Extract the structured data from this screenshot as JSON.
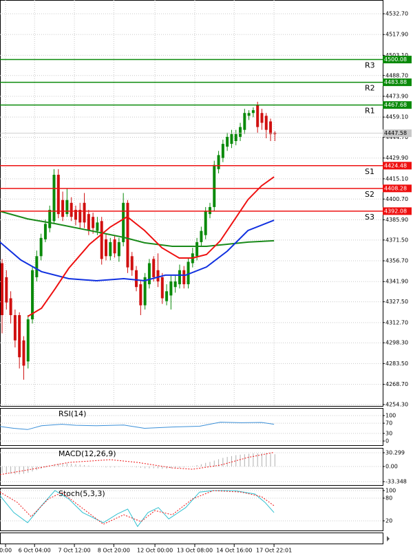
{
  "chart_data": [
    {
      "type": "candlestick",
      "open": [
        4355,
        4345,
        4330,
        4318,
        4318,
        4300,
        4285,
        4315,
        4345,
        4360,
        4372,
        4380,
        4385,
        4418,
        4400,
        4390,
        4398,
        4393,
        4393,
        4398,
        4390,
        4388,
        4378,
        4385,
        4372,
        4360,
        4372,
        4360,
        4370,
        4398,
        4360,
        4350,
        4340,
        4325,
        4340,
        4358,
        4350,
        4345,
        4328,
        4332,
        4338,
        4340,
        4350,
        4340,
        4355,
        4360,
        4370,
        4375,
        4390,
        4395,
        4422,
        4430,
        4438,
        4440,
        4442,
        4445,
        4450,
        4460,
        4462,
        4468,
        4462,
        4460,
        4456,
        4448
      ],
      "high": [
        4358,
        4350,
        4335,
        4322,
        4320,
        4303,
        4318,
        4353,
        4364,
        4376,
        4386,
        4396,
        4422,
        4422,
        4406,
        4408,
        4402,
        4396,
        4398,
        4405,
        4393,
        4391,
        4388,
        4388,
        4376,
        4373,
        4375,
        4373,
        4405,
        4400,
        4363,
        4353,
        4343,
        4348,
        4358,
        4360,
        4362,
        4348,
        4340,
        4346,
        4346,
        4354,
        4353,
        4359,
        4366,
        4373,
        4381,
        4395,
        4398,
        4428,
        4435,
        4443,
        4448,
        4450,
        4450,
        4455,
        4465,
        4464,
        4466,
        4470,
        4465,
        4462,
        4458,
        4449
      ],
      "low": [
        4305,
        4322,
        4312,
        4295,
        4280,
        4272,
        4280,
        4312,
        4342,
        4357,
        4370,
        4377,
        4383,
        4387,
        4385,
        4388,
        4385,
        4382,
        4380,
        4380,
        4375,
        4376,
        4375,
        4354,
        4357,
        4357,
        4359,
        4356,
        4367,
        4348,
        4346,
        4335,
        4318,
        4322,
        4337,
        4342,
        4338,
        4326,
        4325,
        4322,
        4334,
        4337,
        4337,
        4337,
        4352,
        4357,
        4367,
        4372,
        4387,
        4392,
        4419,
        4427,
        4435,
        4437,
        4439,
        4442,
        4447,
        4457,
        4459,
        4448,
        4450,
        4444,
        4442,
        4442
      ],
      "close": [
        4318,
        4327,
        4318,
        4300,
        4288,
        4282,
        4315,
        4350,
        4360,
        4373,
        4383,
        4393,
        4418,
        4390,
        4388,
        4400,
        4388,
        4386,
        4384,
        4384,
        4378,
        4380,
        4384,
        4358,
        4360,
        4370,
        4362,
        4370,
        4398,
        4352,
        4350,
        4338,
        4325,
        4345,
        4355,
        4345,
        4342,
        4330,
        4335,
        4342,
        4342,
        4350,
        4340,
        4356,
        4362,
        4370,
        4378,
        4392,
        4395,
        4425,
        4432,
        4440,
        4445,
        4447,
        4447,
        4452,
        4462,
        4462,
        4464,
        4452,
        4455,
        4450,
        4447,
        4447
      ],
      "up_color": "#0a8a0a",
      "down_color": "#d01010",
      "series": [
        {
          "x": [
            -0.5,
            5.9,
            12.2,
            20.2,
            28.1,
            32.9,
            39.3,
            47.2,
            52,
            56.8,
            62.8
          ],
          "values": [
            4392,
            4386.6,
            4383.2,
            4378.3,
            4373.4,
            4369.5,
            4367,
            4367,
            4368.5,
            4370,
            4371
          ],
          "color": "#1a8a1a"
        },
        {
          "x": [
            -0.5,
            4.3,
            9.1,
            15.4,
            21.8,
            28.1,
            32.9,
            37.7,
            42.4,
            47.2,
            52,
            56.8,
            62.8
          ],
          "values": [
            4370,
            4357.3,
            4349,
            4344,
            4342.5,
            4344,
            4342.5,
            4346.5,
            4346.5,
            4352.3,
            4363.6,
            4378.3,
            4385.6
          ],
          "color": "#1030e0"
        },
        {
          "x": [
            5.9,
            9.1,
            12.2,
            15.4,
            20.2,
            25,
            28.9,
            32.9,
            36.9,
            40.9,
            44,
            47.2,
            50.4,
            53.6,
            56.8,
            59.9,
            62.8
          ],
          "values": [
            4317,
            4322.9,
            4336.6,
            4351.4,
            4368.5,
            4380.8,
            4388.1,
            4378.3,
            4366,
            4358.7,
            4358.7,
            4361.2,
            4371,
            4385.6,
            4400.3,
            4410.1,
            4416.5
          ],
          "color": "#ee1010"
        }
      ],
      "levels": [
        {
          "name": "R3",
          "value": 4500.08,
          "color": "#0a8a0a"
        },
        {
          "name": "R2",
          "value": 4483.88,
          "color": "#0a8a0a"
        },
        {
          "name": "R1",
          "value": 4467.68,
          "color": "#0a8a0a"
        },
        {
          "name": "S1",
          "value": 4424.48,
          "color": "#ee1010"
        },
        {
          "name": "S2",
          "value": 4408.28,
          "color": "#ee1010"
        },
        {
          "name": "S3",
          "value": 4392.08,
          "color": "#ee1010"
        }
      ],
      "last_price": 4447.58,
      "xlim": [
        -0.48,
        87.9
      ],
      "xticks": [
        {
          "value": 0.8,
          "label": "0:00"
        },
        {
          "value": 7.5,
          "label": "6 Oct 04:00"
        },
        {
          "value": 16.7,
          "label": "7 Oct 12:00"
        },
        {
          "value": 25.8,
          "label": "8 Oct 20:00"
        },
        {
          "value": 35.3,
          "label": "12 Oct 00:00"
        },
        {
          "value": 44.5,
          "label": "13 Oct 08:00"
        },
        {
          "value": 53.6,
          "label": "14 Oct 16:00"
        },
        {
          "value": 62.8,
          "label": "17 Oct 22:01"
        }
      ],
      "ylim": [
        4253.3,
        4542.5
      ],
      "yticks": [
        {
          "value": 4532.7,
          "label": "4532.70"
        },
        {
          "value": 4517.9,
          "label": "4517.90"
        },
        {
          "value": 4503.1,
          "label": "4503.10"
        },
        {
          "value": 4488.7,
          "label": "4488.70"
        },
        {
          "value": 4473.9,
          "label": "4473.90"
        },
        {
          "value": 4459.1,
          "label": "4459.10"
        },
        {
          "value": 4444.7,
          "label": "4444.70"
        },
        {
          "value": 4429.9,
          "label": "4429.90"
        },
        {
          "value": 4415.1,
          "label": "4415.10"
        },
        {
          "value": 4400.7,
          "label": "4400.70"
        },
        {
          "value": 4385.9,
          "label": "4385.90"
        },
        {
          "value": 4371.5,
          "label": "4371.50"
        },
        {
          "value": 4356.7,
          "label": "4356.70"
        },
        {
          "value": 4341.9,
          "label": "4341.90"
        },
        {
          "value": 4327.5,
          "label": "4327.50"
        },
        {
          "value": 4312.7,
          "label": "4312.70"
        },
        {
          "value": 4298.3,
          "label": "4298.30"
        },
        {
          "value": 4283.5,
          "label": "4283.50"
        },
        {
          "value": 4268.7,
          "label": "4268.70"
        },
        {
          "value": 4254.3,
          "label": "4254.30"
        }
      ]
    },
    {
      "type": "line",
      "title": "RSI(14)",
      "series": [
        {
          "x": [
            -0.5,
            2.7,
            5.9,
            9.1,
            13.8,
            17,
            21.8,
            28.1,
            32.9,
            39.3,
            45.6,
            50.4,
            55.2,
            59.9,
            62.8
          ],
          "values": [
            57,
            50,
            45,
            60,
            66,
            62,
            60,
            63,
            50,
            55,
            58,
            74,
            72,
            73,
            66
          ],
          "color": "#3a8fd8"
        }
      ],
      "ylim": [
        -16.2,
        129.7
      ],
      "yticks": [
        100,
        70,
        30,
        0
      ]
    },
    {
      "type": "macd",
      "title": "MACD(12,26,9)",
      "values": [
        -14,
        -15,
        -16,
        -17,
        -17,
        -16,
        -14,
        -11,
        -8,
        -5,
        -2,
        1,
        4,
        6,
        7,
        7,
        6,
        5,
        4,
        3,
        2,
        1,
        0,
        -1,
        -2,
        -2,
        -2,
        -1,
        0,
        0,
        -1,
        -2,
        -3,
        -4,
        -4,
        -4,
        -4,
        -5,
        -5,
        -4,
        -4,
        -3,
        -2,
        -1,
        1,
        3,
        5,
        8,
        10,
        13,
        16,
        19,
        21,
        23,
        25,
        26,
        27,
        28,
        29,
        29,
        29,
        29,
        28,
        27
      ],
      "color": "#b0b0b0",
      "series": [
        {
          "x": [
            -0.5,
            5.9,
            15.4,
            25,
            31.3,
            39.3,
            44,
            50.4,
            56.8,
            62.8
          ],
          "values": [
            -18,
            -7.5,
            9,
            15,
            9,
            -3,
            -6,
            3,
            20,
            31
          ],
          "color": "#ee1010",
          "dash": true
        }
      ],
      "ylim": [
        -40.9,
        40.9
      ],
      "yticks": [
        30.299,
        {
          "value": 0,
          "label": "0.00"
        },
        -33.348
      ]
    },
    {
      "type": "line",
      "title": "Stoch(5,3,3)",
      "series": [
        {
          "x": [
            -0.5,
            2.7,
            5.9,
            9.1,
            12.2,
            15.4,
            18.6,
            23.4,
            26.6,
            29,
            31.3,
            33.7,
            36.1,
            38.5,
            42.4,
            45.6,
            48.8,
            53.6,
            58.4,
            60.7,
            62.8
          ],
          "values": [
            87,
            42,
            15,
            60,
            100,
            78,
            42,
            15,
            38,
            51,
            5,
            42,
            55,
            25,
            55,
            96,
            100,
            100,
            91,
            69,
            42
          ],
          "color": "#2fc0d0"
        },
        {
          "x": [
            -0.5,
            3.5,
            6.7,
            10.7,
            13.8,
            17.8,
            23.4,
            28.1,
            32.1,
            35.3,
            39.3,
            44,
            48.8,
            55.2,
            59.9,
            62.8
          ],
          "values": [
            96,
            69,
            31,
            78,
            95,
            60,
            11,
            36,
            18,
            47,
            36,
            78,
            100,
            96,
            84,
            60
          ],
          "color": "#ee1010",
          "dash": true
        }
      ],
      "ylim": [
        -5.5,
        107.3
      ],
      "yticks": [
        100,
        80,
        20
      ]
    }
  ]
}
